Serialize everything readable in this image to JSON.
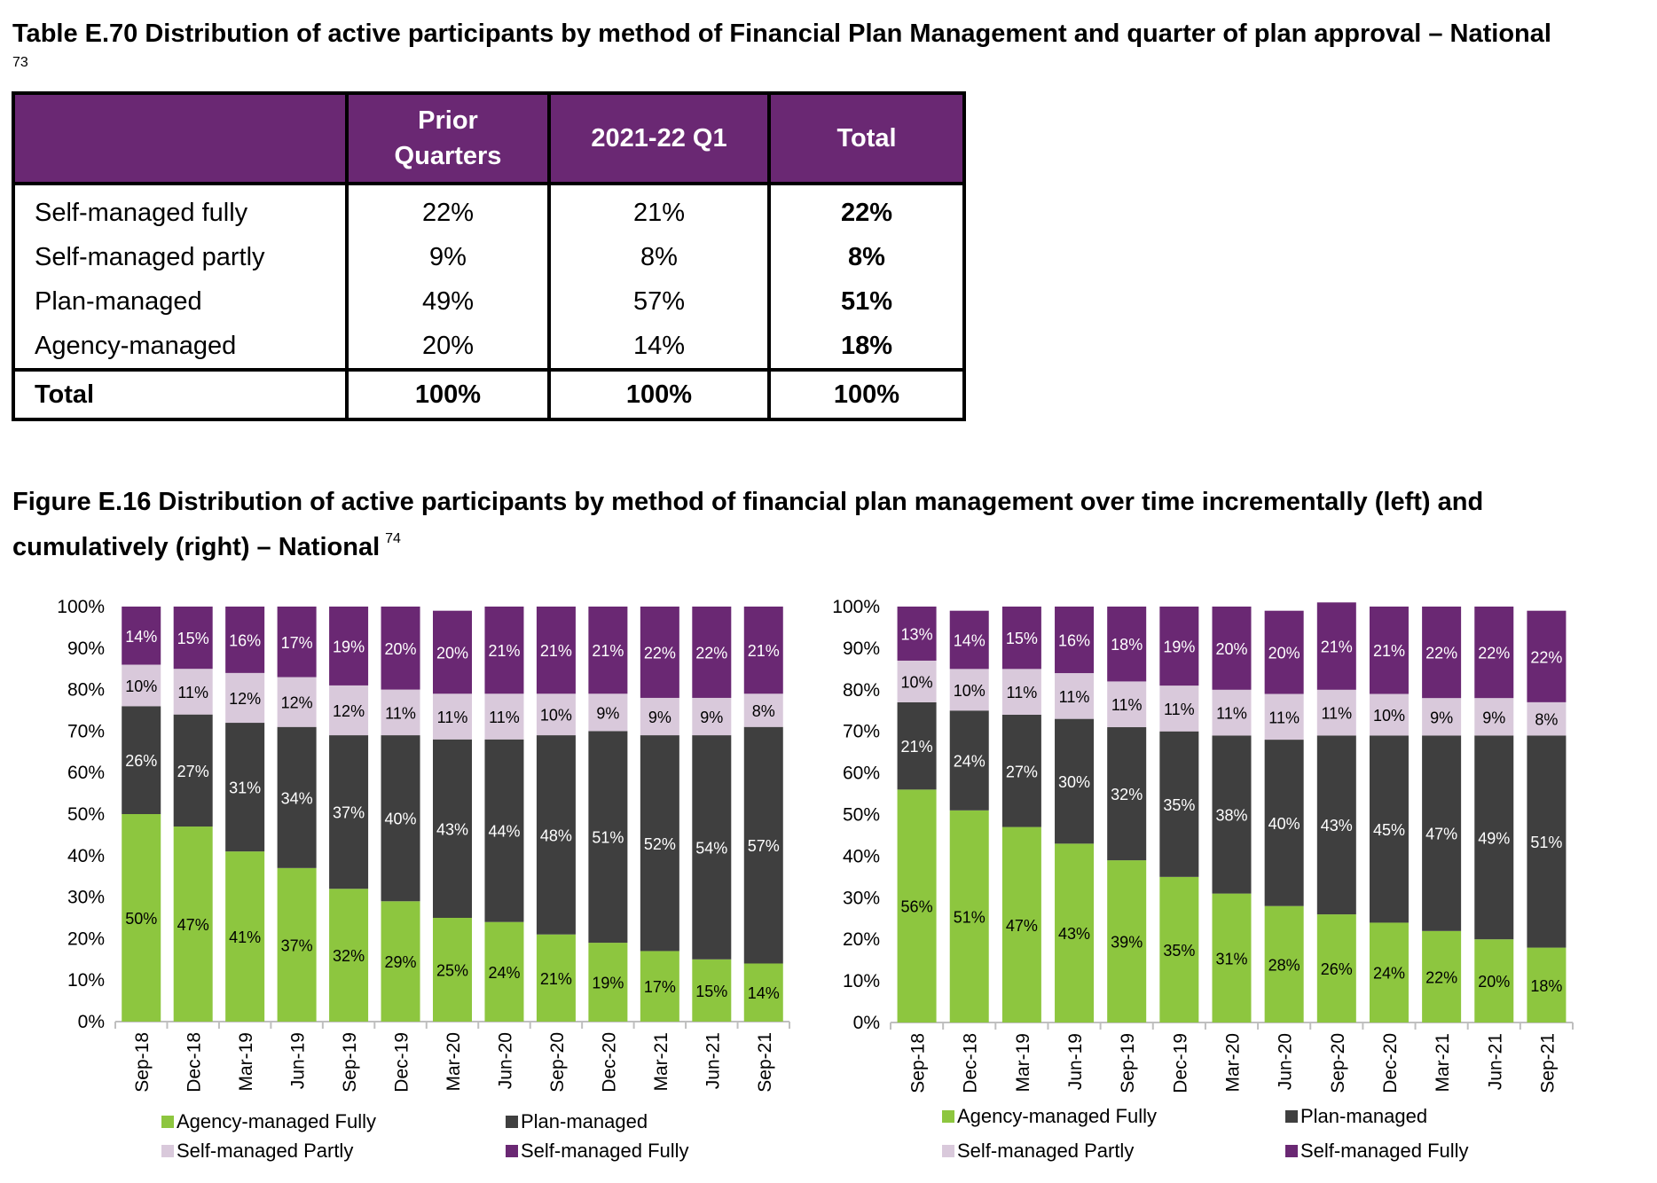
{
  "table": {
    "title": "Table E.70 Distribution of active participants by method of Financial Plan Management and quarter of plan approval – National",
    "footnote": "73",
    "headers": [
      "",
      "Prior Quarters",
      "2021-22 Q1",
      "Total"
    ],
    "rows": [
      {
        "label": "Self-managed fully",
        "prior": "22%",
        "q1": "21%",
        "total": "22%"
      },
      {
        "label": "Self-managed partly",
        "prior": "9%",
        "q1": "8%",
        "total": "8%"
      },
      {
        "label": "Plan-managed",
        "prior": "49%",
        "q1": "57%",
        "total": "51%"
      },
      {
        "label": "Agency-managed",
        "prior": "20%",
        "q1": "14%",
        "total": "18%"
      }
    ],
    "total_row": {
      "label": "Total",
      "prior": "100%",
      "q1": "100%",
      "total": "100%"
    }
  },
  "figure": {
    "title": "Figure E.16 Distribution of active participants by method of financial plan management over time incrementally (left) and cumulatively (right) – National",
    "footnote": "74"
  },
  "colors": {
    "agency": "#8dc63f",
    "plan": "#3f3f3f",
    "self_partly": "#d9c9db",
    "self_fully": "#6a2873",
    "header_bg": "#6a2873"
  },
  "chart_data": [
    {
      "type": "bar",
      "stacked": true,
      "categories": [
        "Sep-18",
        "Dec-18",
        "Mar-19",
        "Jun-19",
        "Sep-19",
        "Dec-19",
        "Mar-20",
        "Jun-20",
        "Sep-20",
        "Dec-20",
        "Mar-21",
        "Jun-21",
        "Sep-21"
      ],
      "yticks": [
        "0%",
        "10%",
        "20%",
        "30%",
        "40%",
        "50%",
        "60%",
        "70%",
        "80%",
        "90%",
        "100%"
      ],
      "ylim": [
        0,
        100
      ],
      "legend_position": "bottom",
      "series": [
        {
          "name": "Agency-managed Fully",
          "values": [
            50,
            47,
            41,
            37,
            32,
            29,
            25,
            24,
            21,
            19,
            17,
            15,
            14
          ]
        },
        {
          "name": "Plan-managed",
          "values": [
            26,
            27,
            31,
            34,
            37,
            40,
            43,
            44,
            48,
            51,
            52,
            54,
            57
          ]
        },
        {
          "name": "Self-managed Partly",
          "values": [
            10,
            11,
            12,
            12,
            12,
            11,
            11,
            11,
            10,
            9,
            9,
            9,
            8
          ]
        },
        {
          "name": "Self-managed Fully",
          "values": [
            14,
            15,
            16,
            17,
            19,
            20,
            20,
            21,
            21,
            21,
            22,
            22,
            21
          ]
        }
      ]
    },
    {
      "type": "bar",
      "stacked": true,
      "categories": [
        "Sep-18",
        "Dec-18",
        "Mar-19",
        "Jun-19",
        "Sep-19",
        "Dec-19",
        "Mar-20",
        "Jun-20",
        "Sep-20",
        "Dec-20",
        "Mar-21",
        "Jun-21",
        "Sep-21"
      ],
      "yticks": [
        "0%",
        "10%",
        "20%",
        "30%",
        "40%",
        "50%",
        "60%",
        "70%",
        "80%",
        "90%",
        "100%"
      ],
      "ylim": [
        0,
        100
      ],
      "legend_position": "bottom",
      "series": [
        {
          "name": "Agency-managed Fully",
          "values": [
            56,
            51,
            47,
            43,
            39,
            35,
            31,
            28,
            26,
            24,
            22,
            20,
            18
          ]
        },
        {
          "name": "Plan-managed",
          "values": [
            21,
            24,
            27,
            30,
            32,
            35,
            38,
            40,
            43,
            45,
            47,
            49,
            51
          ]
        },
        {
          "name": "Self-managed Partly",
          "values": [
            10,
            10,
            11,
            11,
            11,
            11,
            11,
            11,
            11,
            10,
            9,
            9,
            8
          ]
        },
        {
          "name": "Self-managed Fully",
          "values": [
            13,
            14,
            15,
            16,
            18,
            19,
            20,
            20,
            21,
            21,
            22,
            22,
            22
          ]
        }
      ]
    }
  ]
}
